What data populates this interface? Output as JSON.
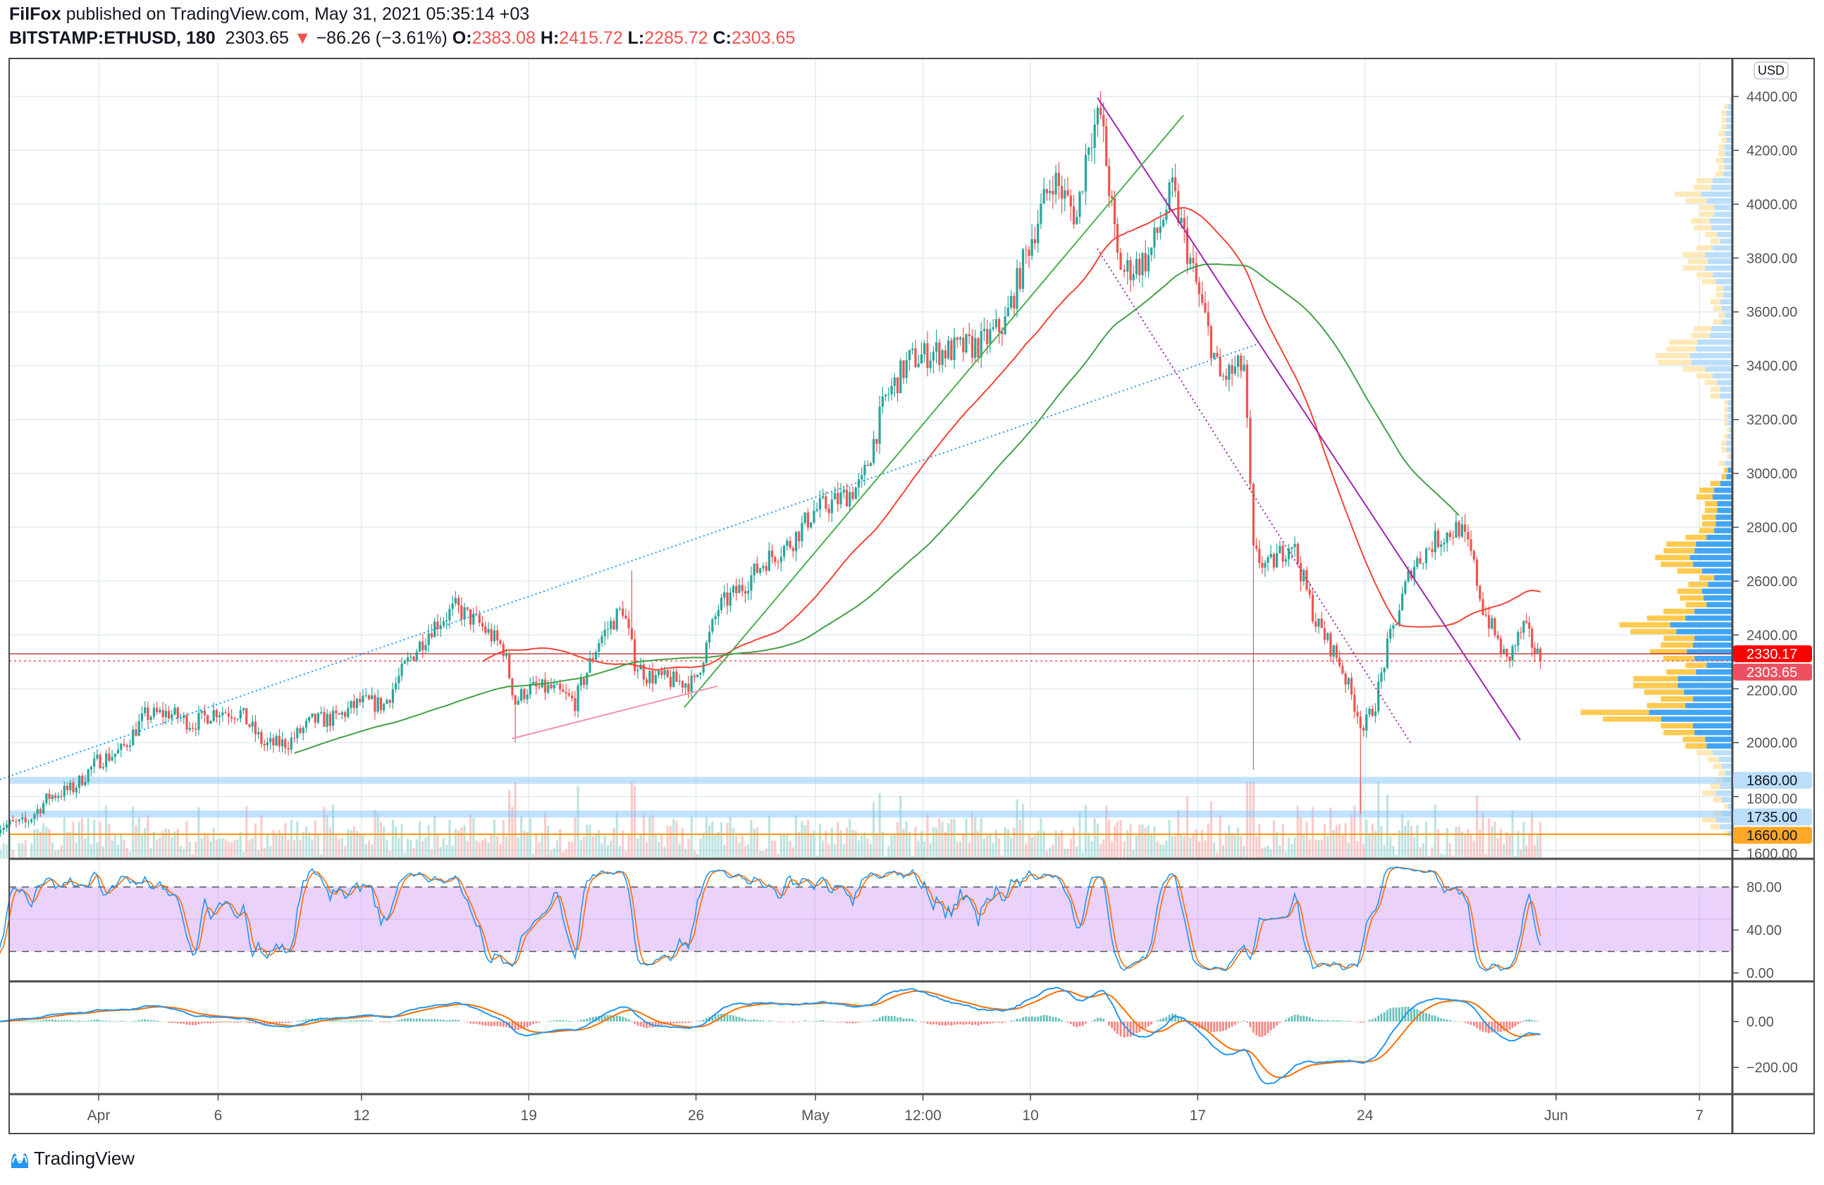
{
  "header": {
    "author": "FilFox",
    "published": "published on TradingView.com, May 31, 2021 05:35:14 +03"
  },
  "legend": {
    "symbol": "BITSTAMP:ETHUSD, 180",
    "last": "2303.65",
    "arrow": "▼",
    "change": "−86.26 (−3.61%)",
    "o_label": "O:",
    "o": "2383.08",
    "h_label": "H:",
    "h": "2415.72",
    "l_label": "L:",
    "l": "2285.72",
    "c_label": "C:",
    "c": "2303.65"
  },
  "logo": "TradingView",
  "chart_data": {
    "type": "candlestick",
    "title": "BITSTAMP:ETHUSD, 180",
    "currency": "USD",
    "ylim": [
      1600,
      4400
    ],
    "price_ticks": [
      "4400.00",
      "4200.00",
      "4000.00",
      "3800.00",
      "3600.00",
      "3400.00",
      "3200.00",
      "3000.00",
      "2800.00",
      "2600.00",
      "2400.00",
      "2200.00",
      "2000.00",
      "1800.00",
      "1600.00"
    ],
    "x_ticks": [
      {
        "day": 0,
        "label": "Apr"
      },
      {
        "day": 5,
        "label": "6"
      },
      {
        "day": 11,
        "label": "12"
      },
      {
        "day": 18,
        "label": "19"
      },
      {
        "day": 25,
        "label": "26"
      },
      {
        "day": 30,
        "label": "May"
      },
      {
        "day": 34.5,
        "label": "12:00"
      },
      {
        "day": 39,
        "label": "10"
      },
      {
        "day": 46,
        "label": "17"
      },
      {
        "day": 53,
        "label": "24"
      },
      {
        "day": 61,
        "label": "Jun"
      },
      {
        "day": 67,
        "label": "7"
      }
    ],
    "x_unit": "days since Apr 1, 2021",
    "daily_closes": [
      [
        -4.3,
        1690
      ],
      [
        -3,
        1700
      ],
      [
        -2,
        1800
      ],
      [
        -1,
        1830
      ],
      [
        0,
        1930
      ],
      [
        1,
        1970
      ],
      [
        2,
        2100
      ],
      [
        3,
        2110
      ],
      [
        4,
        2070
      ],
      [
        5,
        2120
      ],
      [
        6,
        2110
      ],
      [
        7,
        1990
      ],
      [
        8,
        2000
      ],
      [
        9,
        2080
      ],
      [
        10,
        2090
      ],
      [
        11,
        2150
      ],
      [
        12,
        2140
      ],
      [
        13,
        2300
      ],
      [
        14,
        2430
      ],
      [
        15,
        2500
      ],
      [
        16,
        2440
      ],
      [
        17,
        2350
      ],
      [
        17.5,
        2150
      ],
      [
        18,
        2200
      ],
      [
        19,
        2200
      ],
      [
        20,
        2150
      ],
      [
        21,
        2380
      ],
      [
        22,
        2500
      ],
      [
        22.5,
        2300
      ],
      [
        23,
        2250
      ],
      [
        24,
        2230
      ],
      [
        25,
        2220
      ],
      [
        26,
        2500
      ],
      [
        27,
        2580
      ],
      [
        28,
        2680
      ],
      [
        29,
        2740
      ],
      [
        30,
        2860
      ],
      [
        31,
        2900
      ],
      [
        32,
        2960
      ],
      [
        33,
        3280
      ],
      [
        34,
        3420
      ],
      [
        35,
        3450
      ],
      [
        36,
        3460
      ],
      [
        37,
        3480
      ],
      [
        38,
        3560
      ],
      [
        39,
        3850
      ],
      [
        40,
        4100
      ],
      [
        41,
        3950
      ],
      [
        41.5,
        4250
      ],
      [
        42,
        4330
      ],
      [
        42.7,
        3800
      ],
      [
        43,
        3750
      ],
      [
        44,
        3800
      ],
      [
        45,
        4050
      ],
      [
        46,
        3700
      ],
      [
        47,
        3350
      ],
      [
        48,
        3400
      ],
      [
        48.4,
        2700
      ],
      [
        49,
        2650
      ],
      [
        50,
        2750
      ],
      [
        51,
        2450
      ],
      [
        52,
        2300
      ],
      [
        53,
        2050
      ],
      [
        53.5,
        2150
      ],
      [
        54,
        2350
      ],
      [
        55,
        2650
      ],
      [
        56,
        2750
      ],
      [
        57,
        2800
      ],
      [
        57.5,
        2700
      ],
      [
        58,
        2500
      ],
      [
        59,
        2300
      ],
      [
        59.7,
        2430
      ],
      [
        60.4,
        2303.65
      ]
    ],
    "wicks": [
      {
        "day": 17.4,
        "low": 2000
      },
      {
        "day": 48.3,
        "low": 1900
      },
      {
        "day": 52.8,
        "low": 1735
      },
      {
        "day": 42.1,
        "high": 4380
      },
      {
        "day": 22.3,
        "high": 2640
      }
    ],
    "price_labels": [
      {
        "value": "2330.17",
        "price": 2330.17,
        "bg": "#ff0000",
        "fg": "#ffffff"
      },
      {
        "value": "2303.65",
        "price": 2303.65,
        "bg": "#ef5060",
        "fg": "#ffffff"
      },
      {
        "value": "1860.00",
        "price": 1860,
        "bg": "#bbdefb",
        "fg": "#131722"
      },
      {
        "value": "1735.00",
        "price": 1735,
        "bg": "#bbdefb",
        "fg": "#131722"
      },
      {
        "value": "1660.00",
        "price": 1660,
        "bg": "#ffa726",
        "fg": "#131722"
      }
    ],
    "trendlines": [
      {
        "name": "blue-dotted-trendline",
        "from": [
          -4.3,
          1858
        ],
        "to": [
          48.5,
          3480
        ],
        "color": "#2196f3",
        "dash": true
      },
      {
        "name": "purple-trendline",
        "from": [
          41.8,
          4396
        ],
        "to": [
          59.5,
          2010
        ],
        "color": "#9c27b0",
        "dash": false
      },
      {
        "name": "purple-dotted-trendline",
        "from": [
          41.8,
          3835
        ],
        "to": [
          54.9,
          2000
        ],
        "color": "#9c27b0",
        "dash": true
      },
      {
        "name": "green-trendline",
        "from": [
          24.5,
          2130
        ],
        "to": [
          45.4,
          4330
        ],
        "color": "#4caf50",
        "dash": false
      },
      {
        "name": "pink-trendline",
        "from": [
          17.3,
          2015
        ],
        "to": [
          25.9,
          2210
        ],
        "color": "#f48fb1",
        "dash": false
      }
    ],
    "stoch": {
      "ticks": [
        "80.00",
        "40.00",
        "0.00"
      ],
      "upper": 80,
      "lower": 20,
      "k_color": "#2196f3",
      "d_color": "#ff6d00"
    },
    "macd": {
      "ticks": [
        "0.00",
        "−200.00"
      ],
      "macd_color": "#2196f3",
      "signal_color": "#ff6d00"
    },
    "colors": {
      "up": "#26a69a",
      "down": "#ef5350",
      "ma_fast": "#f44336",
      "ma_slow": "#43a047"
    }
  }
}
